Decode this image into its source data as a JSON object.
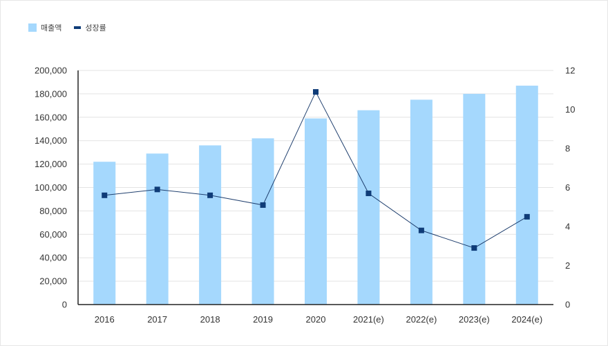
{
  "legend": {
    "bar_label": "매출액",
    "line_label": "성장률"
  },
  "colors": {
    "bar": "#a5d8fd",
    "line": "#1f3f6e",
    "marker": "#0f3c78",
    "grid": "#e3e3e3",
    "axis": "#222222"
  },
  "chart_data": {
    "type": "bar",
    "categories": [
      "2016",
      "2017",
      "2018",
      "2019",
      "2020",
      "2021(e)",
      "2022(e)",
      "2023(e)",
      "2024(e)"
    ],
    "series": [
      {
        "name": "매출액",
        "type": "bar",
        "axis": "left",
        "values": [
          122000,
          129000,
          136000,
          142000,
          159000,
          166000,
          175000,
          180000,
          187000
        ]
      },
      {
        "name": "성장률",
        "type": "line",
        "axis": "right",
        "values": [
          5.6,
          5.9,
          5.6,
          5.1,
          10.9,
          5.7,
          3.8,
          2.9,
          4.5
        ]
      }
    ],
    "y_left": {
      "min": 0,
      "max": 200000,
      "ticks": [
        "0",
        "20,000",
        "40,000",
        "60,000",
        "80,000",
        "100,000",
        "120,000",
        "140,000",
        "160,000",
        "180,000",
        "200,000"
      ]
    },
    "y_right": {
      "min": 0,
      "max": 12,
      "ticks": [
        "0",
        "2",
        "4",
        "6",
        "8",
        "10",
        "12"
      ]
    },
    "grid": true,
    "legend_position": "top-left"
  }
}
